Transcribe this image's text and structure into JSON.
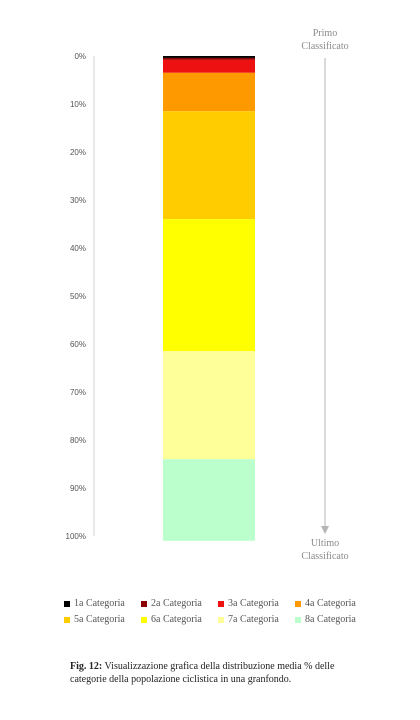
{
  "chart_data": {
    "type": "bar",
    "orientation": "vertical-stacked",
    "y_ticks": [
      "0%",
      "10%",
      "20%",
      "30%",
      "40%",
      "50%",
      "60%",
      "70%",
      "80%",
      "90%",
      "100%"
    ],
    "ylim": [
      0,
      100
    ],
    "y_axis_inverted": true,
    "series": [
      {
        "name": "1a Categoria",
        "value": 0.4,
        "color": "#000000"
      },
      {
        "name": "2a Categoria",
        "value": 0.4,
        "color": "#8b0000"
      },
      {
        "name": "3a Categoria",
        "value": 2.7,
        "color": "#ee1111"
      },
      {
        "name": "4a Categoria",
        "value": 8.0,
        "color": "#ff9900"
      },
      {
        "name": "5a Categoria",
        "value": 22.5,
        "color": "#ffcc00"
      },
      {
        "name": "6a Categoria",
        "value": 27.5,
        "color": "#ffff00"
      },
      {
        "name": "7a Categoria",
        "value": 22.5,
        "color": "#ffff99"
      },
      {
        "name": "8a Categoria",
        "value": 17.0,
        "color": "#bbffcc"
      }
    ],
    "top_note": [
      "Primo",
      "Classificato"
    ],
    "bottom_note": [
      "Ultimo",
      "Classificato"
    ],
    "legend_position": "bottom"
  },
  "caption": {
    "label": "Fig. 12:",
    "text": "Visualizzazione grafica della distribuzione media % delle categorie della popolazione ciclistica in una granfondo."
  }
}
